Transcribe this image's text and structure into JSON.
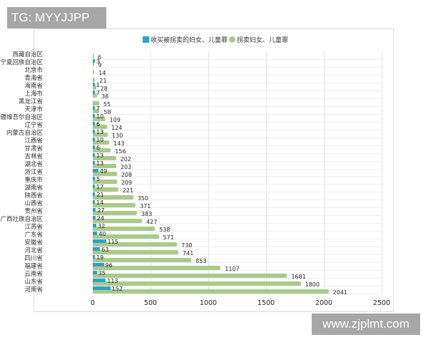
{
  "watermarks": {
    "top_left": "TG: MYYJJPP",
    "bottom_right": "www.zjplmt.com"
  },
  "legend": {
    "series1": "收买被拐卖的妇女、儿童罪",
    "series2": "拐卖妇女、儿童罪"
  },
  "colors": {
    "series1": "#2aa3cc",
    "series2": "#a9c98c",
    "grid": "#e3e3e3"
  },
  "x_ticks": [
    "0",
    "500",
    "1000",
    "1500",
    "2000",
    "2500"
  ],
  "chart_data": {
    "type": "bar",
    "orientation": "horizontal",
    "title": "",
    "xlabel": "",
    "ylabel": "",
    "xlim": [
      0,
      2500
    ],
    "grid": true,
    "legend_position": "top",
    "categories": [
      "西藏自治区",
      "宁夏回族自治区",
      "北京市",
      "青海省",
      "海南省",
      "上海市",
      "黑龙江省",
      "天津市",
      "新疆维吾尔自治区",
      "辽宁省",
      "内蒙古自治区",
      "江西省",
      "甘肃省",
      "吉林省",
      "湖北省",
      "浙江省",
      "重庆市",
      "湖南省",
      "陕西省",
      "山西省",
      "贵州省",
      "广西壮族自治区",
      "江苏省",
      "广东省",
      "安徽省",
      "河北省",
      "四川省",
      "福建省",
      "云南省",
      "山东省",
      "河南省"
    ],
    "series": [
      {
        "name": "收买被拐卖的妇女、儿童罪",
        "values": [
          0,
          3,
          0,
          0,
          1,
          7,
          0,
          7,
          10,
          6,
          13,
          10,
          6,
          13,
          13,
          49,
          5,
          17,
          21,
          14,
          27,
          24,
          32,
          40,
          115,
          63,
          19,
          96,
          35,
          113,
          152
        ]
      },
      {
        "name": "拐卖妇女、儿童罪",
        "values": [
          6,
          9,
          14,
          21,
          28,
          38,
          55,
          58,
          109,
          124,
          130,
          143,
          156,
          202,
          203,
          208,
          209,
          221,
          350,
          371,
          383,
          427,
          538,
          571,
          730,
          741,
          853,
          1107,
          1681,
          1800,
          2041
        ]
      }
    ],
    "labels_series1": [
      "",
      "3",
      "",
      "",
      "1",
      "7",
      "",
      "7",
      "10",
      "6",
      "13",
      "10",
      "6",
      "13",
      "13",
      "49",
      "5",
      "17",
      "21",
      "14",
      "27",
      "24",
      "32",
      "40",
      "115",
      "63",
      "19",
      "96",
      "35",
      "113",
      "152"
    ],
    "labels_series2": [
      "6",
      "9",
      "14",
      "21",
      "28",
      "38",
      "55",
      "58",
      "109",
      "124",
      "130",
      "143",
      "156",
      "202",
      "203",
      "208",
      "209",
      "221",
      "350",
      "371",
      "383",
      "427",
      "538",
      "571",
      "730",
      "741",
      "853",
      "1107",
      "1681",
      "1800",
      "2041"
    ]
  }
}
